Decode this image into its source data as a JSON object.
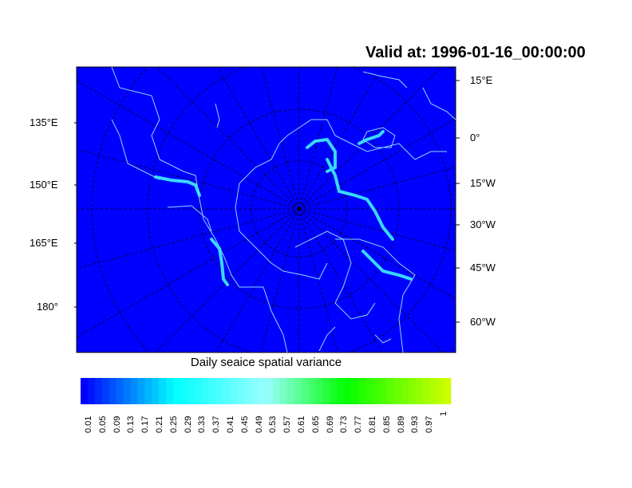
{
  "title": "Valid at: 1996-01-16_00:00:00",
  "left_labels": [
    "135°E",
    "150°E",
    "165°E",
    "180°"
  ],
  "right_labels": [
    "15°E",
    "0°",
    "15°W",
    "30°W",
    "45°W",
    "60°W"
  ],
  "colorbar": {
    "title": "Daily seaice spatial variance",
    "labels": [
      "0.01",
      "0.05",
      "0.09",
      "0.13",
      "0.17",
      "0.21",
      "0.25",
      "0.29",
      "0.33",
      "0.37",
      "0.41",
      "0.45",
      "0.49",
      "0.53",
      "0.57",
      "0.61",
      "0.65",
      "0.69",
      "0.73",
      "0.77",
      "0.81",
      "0.85",
      "0.89",
      "0.93",
      "0.97",
      "1"
    ],
    "colors": [
      "#0000ff",
      "#00ffff",
      "#99ffff",
      "#00ff00",
      "#ccff00"
    ]
  },
  "map": {
    "background": "#0000ff",
    "coastline": "#8fd8ff",
    "ice_edge": "#40f0ff",
    "projection": "polar stereographic",
    "grid": true
  }
}
